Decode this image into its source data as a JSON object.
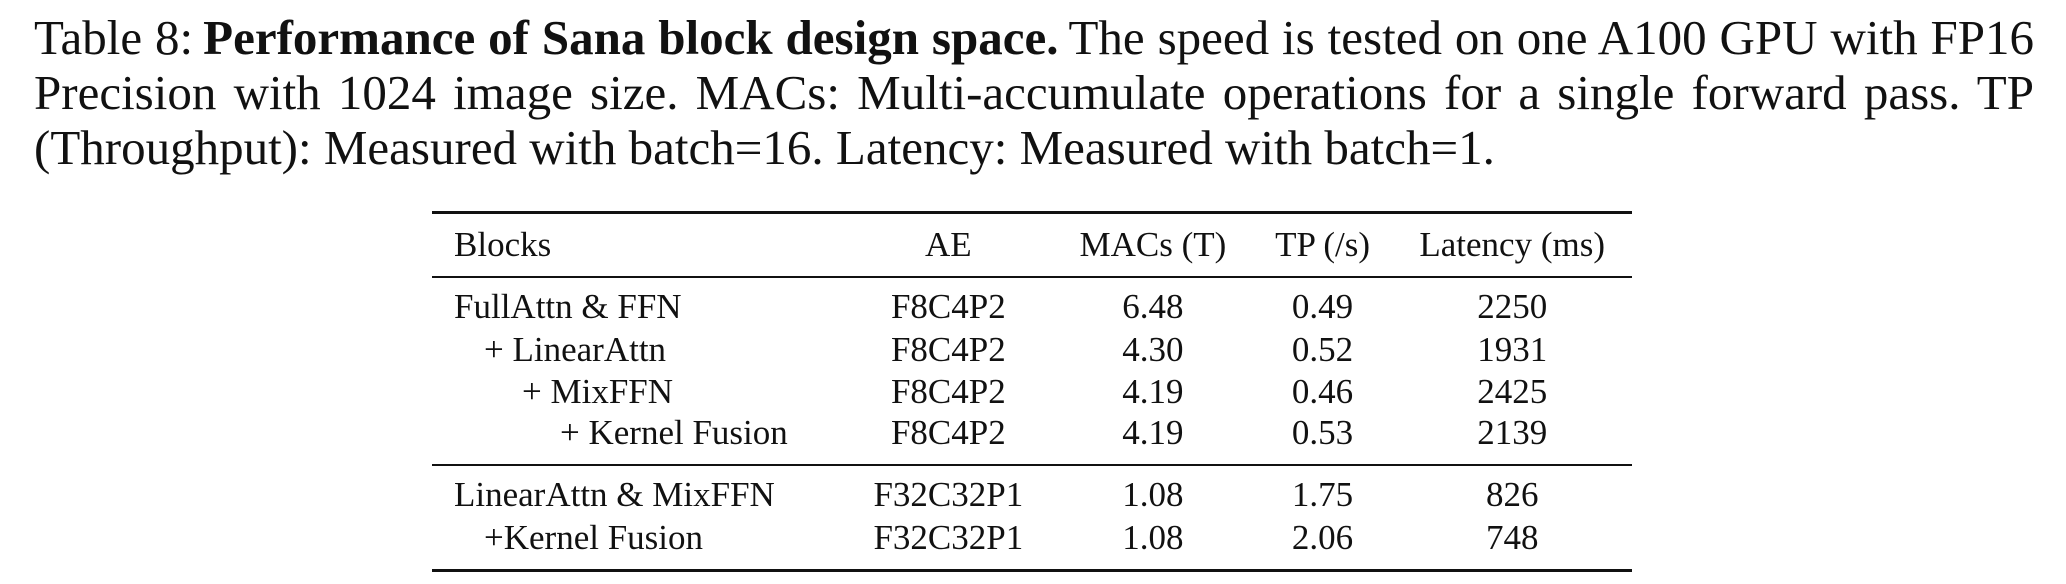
{
  "caption": {
    "label": "Table 8:",
    "title": "Performance of Sana block design space.",
    "text": "The speed is tested on one A100 GPU with FP16 Precision with 1024 image size. MACs: Multi-accumulate operations for a single forward pass. TP (Throughput): Measured with batch=16. Latency: Measured with batch=1."
  },
  "table": {
    "headers": {
      "blocks": "Blocks",
      "ae": "AE",
      "macs": "MACs (T)",
      "tp": "TP (/s)",
      "latency": "Latency (ms)"
    },
    "group1": [
      {
        "block": "FullAttn & FFN",
        "ae": "F8C4P2",
        "macs": "6.48",
        "tp": "0.49",
        "latency": "2250"
      },
      {
        "block": "+ LinearAttn",
        "ae": "F8C4P2",
        "macs": "4.30",
        "tp": "0.52",
        "latency": "1931"
      },
      {
        "block": "+ MixFFN",
        "ae": "F8C4P2",
        "macs": "4.19",
        "tp": "0.46",
        "latency": "2425"
      },
      {
        "block": "+ Kernel Fusion",
        "ae": "F8C4P2",
        "macs": "4.19",
        "tp": "0.53",
        "latency": "2139"
      }
    ],
    "group2": [
      {
        "block": "LinearAttn & MixFFN",
        "ae": "F32C32P1",
        "macs": "1.08",
        "tp": "1.75",
        "latency": "826"
      },
      {
        "block": "+Kernel Fusion",
        "ae": "F32C32P1",
        "macs": "1.08",
        "tp": "2.06",
        "latency": "748"
      }
    ]
  }
}
